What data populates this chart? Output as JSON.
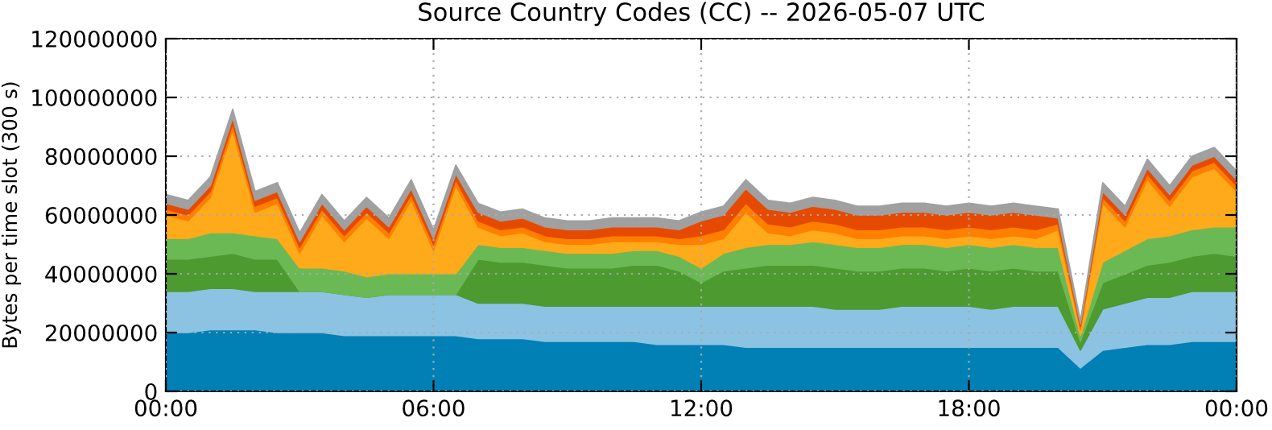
{
  "chart_data": {
    "type": "area",
    "stacked": true,
    "title": "Source Country Codes (CC) -- 2026-05-07 UTC",
    "ylabel": "Bytes per time slot (300 s)",
    "x": [
      0,
      0.5,
      1,
      1.5,
      2,
      2.5,
      3,
      3.5,
      4,
      4.5,
      5,
      5.5,
      6,
      6.5,
      7,
      7.5,
      8,
      8.5,
      9,
      9.5,
      10,
      10.5,
      11,
      11.5,
      12,
      12.5,
      13,
      13.5,
      14,
      14.5,
      15,
      15.5,
      16,
      16.5,
      17,
      17.5,
      18,
      18.5,
      19,
      19.5,
      20,
      20.5,
      21,
      21.5,
      22,
      22.5,
      23,
      23.5,
      24
    ],
    "xlim": [
      0,
      24
    ],
    "xticks": [
      {
        "value": 0,
        "label": "00:00"
      },
      {
        "value": 6,
        "label": "06:00"
      },
      {
        "value": 12,
        "label": "12:00"
      },
      {
        "value": 18,
        "label": "18:00"
      },
      {
        "value": 24,
        "label": "00:00"
      }
    ],
    "ylim": [
      0,
      120000000
    ],
    "yticks": [
      0,
      20000000,
      40000000,
      60000000,
      80000000,
      100000000,
      120000000
    ],
    "grid": true,
    "series": [
      {
        "color": "#0080b4",
        "values": [
          20000000.0,
          20000000.0,
          21000000.0,
          21000000.0,
          21000000.0,
          20000000.0,
          20000000.0,
          20000000.0,
          19000000.0,
          19000000.0,
          19000000.0,
          19000000.0,
          19000000.0,
          19000000.0,
          18000000.0,
          18000000.0,
          18000000.0,
          17000000.0,
          17000000.0,
          17000000.0,
          17000000.0,
          17000000.0,
          16000000.0,
          16000000.0,
          16000000.0,
          16000000.0,
          15000000.0,
          15000000.0,
          15000000.0,
          15000000.0,
          15000000.0,
          15000000.0,
          15000000.0,
          15000000.0,
          15000000.0,
          15000000.0,
          15000000.0,
          15000000.0,
          15000000.0,
          15000000.0,
          15000000.0,
          8000000.0,
          14000000.0,
          15000000.0,
          16000000.0,
          16000000.0,
          17000000.0,
          17000000.0,
          17000000.0
        ]
      },
      {
        "color": "#8cc3e3",
        "values": [
          14000000.0,
          14000000.0,
          14000000.0,
          14000000.0,
          13000000.0,
          14000000.0,
          14000000.0,
          14000000.0,
          14000000.0,
          13000000.0,
          14000000.0,
          14000000.0,
          14000000.0,
          14000000.0,
          12000000.0,
          12000000.0,
          12000000.0,
          12000000.0,
          12000000.0,
          12000000.0,
          12000000.0,
          12000000.0,
          13000000.0,
          13000000.0,
          13000000.0,
          13000000.0,
          14000000.0,
          14000000.0,
          14000000.0,
          14000000.0,
          13000000.0,
          13000000.0,
          13000000.0,
          14000000.0,
          14000000.0,
          14000000.0,
          14000000.0,
          13000000.0,
          14000000.0,
          14000000.0,
          14000000.0,
          6000000.0,
          14000000.0,
          15000000.0,
          16000000.0,
          16000000.0,
          17000000.0,
          17000000.0,
          17000000.0
        ]
      },
      {
        "color": "#4c9a30",
        "values": [
          11000000.0,
          11000000.0,
          11000000.0,
          12000000.0,
          11000000.0,
          11000000.0,
          0,
          0,
          0,
          0,
          0,
          0,
          0,
          0,
          15000000.0,
          14000000.0,
          14000000.0,
          14000000.0,
          13000000.0,
          13000000.0,
          13000000.0,
          14000000.0,
          14000000.0,
          12000000.0,
          8000000.0,
          12000000.0,
          13000000.0,
          14000000.0,
          14000000.0,
          14000000.0,
          14000000.0,
          13000000.0,
          13000000.0,
          13000000.0,
          13000000.0,
          12000000.0,
          13000000.0,
          13000000.0,
          13000000.0,
          12000000.0,
          12000000.0,
          3000000.0,
          9000000.0,
          10000000.0,
          11000000.0,
          12000000.0,
          12000000.0,
          13000000.0,
          12000000.0
        ]
      },
      {
        "color": "#6ab955",
        "values": [
          7000000.0,
          7000000.0,
          8000000.0,
          7000000.0,
          8000000.0,
          7000000.0,
          8000000.0,
          8000000.0,
          8000000.0,
          7000000.0,
          7000000.0,
          7000000.0,
          7000000.0,
          7000000.0,
          5000000.0,
          5000000.0,
          5000000.0,
          5000000.0,
          5000000.0,
          5000000.0,
          5000000.0,
          5000000.0,
          5000000.0,
          5000000.0,
          5000000.0,
          6000000.0,
          7000000.0,
          7000000.0,
          7000000.0,
          8000000.0,
          8000000.0,
          8000000.0,
          8000000.0,
          8000000.0,
          8000000.0,
          8000000.0,
          8000000.0,
          8000000.0,
          8000000.0,
          8000000.0,
          8000000.0,
          2000000.0,
          7000000.0,
          8000000.0,
          9000000.0,
          9000000.0,
          9000000.0,
          9000000.0,
          10000000.0
        ]
      },
      {
        "color": "#ffaa1a",
        "values": [
          8000000.0,
          6000000.0,
          12000000.0,
          35000000.0,
          8000000.0,
          12000000.0,
          5000000.0,
          18000000.0,
          10000000.0,
          20000000.0,
          12000000.0,
          25000000.0,
          8000000.0,
          30000000.0,
          6000000.0,
          4000000.0,
          5000000.0,
          3000000.0,
          3000000.0,
          3000000.0,
          4000000.0,
          3000000.0,
          3000000.0,
          4000000.0,
          8000000.0,
          5000000.0,
          12000000.0,
          4000000.0,
          3000000.0,
          4000000.0,
          4000000.0,
          3000000.0,
          3000000.0,
          3000000.0,
          3000000.0,
          3000000.0,
          3000000.0,
          3000000.0,
          3000000.0,
          3000000.0,
          6000000.0,
          2000000.0,
          20000000.0,
          8000000.0,
          20000000.0,
          10000000.0,
          18000000.0,
          20000000.0,
          12000000.0
        ]
      },
      {
        "color": "#ff7f00",
        "values": [
          2000000.0,
          2000000.0,
          2000000.0,
          2000000.0,
          2000000.0,
          2000000.0,
          2000000.0,
          2000000.0,
          2000000.0,
          2000000.0,
          2000000.0,
          2000000.0,
          2000000.0,
          2000000.0,
          2000000.0,
          2000000.0,
          2000000.0,
          2000000.0,
          2000000.0,
          2000000.0,
          2000000.0,
          2000000.0,
          2000000.0,
          2000000.0,
          3000000.0,
          3000000.0,
          3000000.0,
          3000000.0,
          3000000.0,
          3000000.0,
          3000000.0,
          3000000.0,
          3000000.0,
          3000000.0,
          3000000.0,
          3000000.0,
          3000000.0,
          3000000.0,
          3000000.0,
          3000000.0,
          2000000.0,
          1000000.0,
          2000000.0,
          2000000.0,
          2000000.0,
          2000000.0,
          2000000.0,
          2000000.0,
          2000000.0
        ]
      },
      {
        "color": "#e64a00",
        "values": [
          2000000.0,
          2000000.0,
          2000000.0,
          2000000.0,
          2000000.0,
          2000000.0,
          2000000.0,
          2000000.0,
          2000000.0,
          2000000.0,
          2000000.0,
          2000000.0,
          2000000.0,
          2000000.0,
          3000000.0,
          3000000.0,
          3000000.0,
          3000000.0,
          3000000.0,
          3000000.0,
          3000000.0,
          3000000.0,
          3000000.0,
          3000000.0,
          5000000.0,
          5000000.0,
          5000000.0,
          5000000.0,
          5000000.0,
          5000000.0,
          5000000.0,
          5000000.0,
          5000000.0,
          5000000.0,
          5000000.0,
          5000000.0,
          5000000.0,
          5000000.0,
          5000000.0,
          5000000.0,
          2000000.0,
          1000000.0,
          2000000.0,
          2000000.0,
          2000000.0,
          2000000.0,
          2000000.0,
          2000000.0,
          2000000.0
        ]
      },
      {
        "color": "#a0a0a0",
        "values": [
          3000000.0,
          3000000.0,
          3000000.0,
          3000000.0,
          3000000.0,
          3000000.0,
          3000000.0,
          3000000.0,
          3000000.0,
          3000000.0,
          3000000.0,
          3000000.0,
          3000000.0,
          3000000.0,
          3000000.0,
          3000000.0,
          3000000.0,
          3000000.0,
          3000000.0,
          3000000.0,
          3000000.0,
          3000000.0,
          3000000.0,
          3000000.0,
          3000000.0,
          3000000.0,
          3000000.0,
          3000000.0,
          3000000.0,
          3000000.0,
          3000000.0,
          3000000.0,
          3000000.0,
          3000000.0,
          3000000.0,
          3000000.0,
          3000000.0,
          3000000.0,
          3000000.0,
          3000000.0,
          3000000.0,
          1000000.0,
          3000000.0,
          3000000.0,
          3000000.0,
          3000000.0,
          3000000.0,
          3000000.0,
          3000000.0
        ]
      }
    ]
  }
}
